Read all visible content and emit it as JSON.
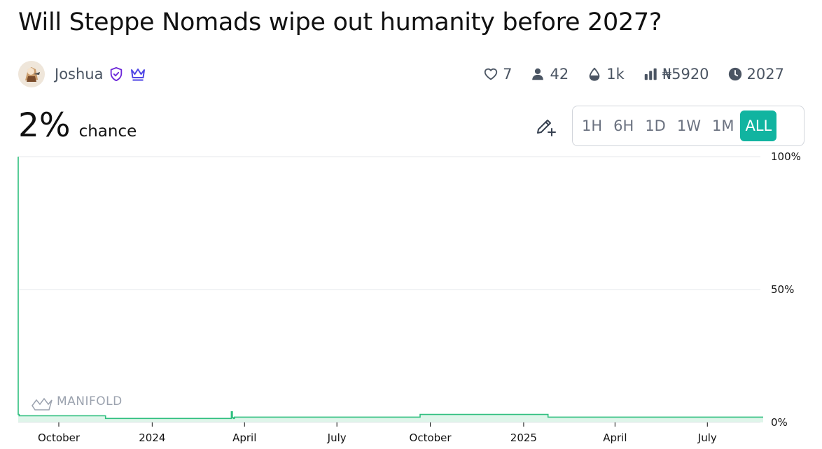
{
  "market": {
    "title": "Will Steppe Nomads wipe out humanity before 2027?",
    "author": "Joshua",
    "probability": "2%",
    "probability_label": "chance"
  },
  "stats": {
    "likes": "7",
    "traders": "42",
    "liquidity": "1k",
    "volume": "₦5920",
    "close_year": "2027"
  },
  "ranges": [
    "1H",
    "6H",
    "1D",
    "1W",
    "1M",
    "ALL"
  ],
  "active_range": "ALL",
  "icons": {
    "verified": "shield-check-icon",
    "crown": "crown-icon",
    "like": "heart-icon",
    "traders": "user-icon",
    "liquidity": "droplet-icon",
    "volume": "bar-chart-icon",
    "close": "clock-icon",
    "edit": "pencil-plus-icon"
  },
  "colors": {
    "line": "#2fbf7f",
    "fill": "#dff5ea",
    "accent": "#11b4a0",
    "verified": "#6d28d9",
    "crown": "#4f46e5"
  },
  "watermark": "MANIFOLD",
  "chart_data": {
    "type": "area",
    "x_ticks": [
      "October",
      "2024",
      "April",
      "July",
      "October",
      "2025",
      "April",
      "July"
    ],
    "y_ticks": [
      "100%",
      "50%",
      "0%"
    ],
    "ylim": [
      0,
      100
    ],
    "grid": true,
    "series": [
      {
        "x": [
          "2023-08-22",
          "2023-08-22",
          "2023-08-23",
          "2023-11-15",
          "2023-11-16",
          "2024-03-18",
          "2024-03-19",
          "2024-03-20",
          "2024-03-21",
          "2024-03-22",
          "2024-09-20",
          "2024-09-21",
          "2025-01-24",
          "2025-01-25",
          "2025-08-25"
        ],
        "y": [
          100,
          3,
          2.5,
          2.5,
          1.5,
          1.5,
          4,
          1.8,
          1.5,
          2,
          2,
          3,
          3,
          2,
          2
        ]
      }
    ]
  }
}
